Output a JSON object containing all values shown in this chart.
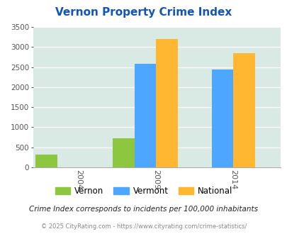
{
  "title": "Vernon Property Crime Index",
  "years": [
    2004,
    2009,
    2014
  ],
  "vernon": [
    310,
    720,
    0
  ],
  "vermont": [
    0,
    2580,
    2430
  ],
  "national": [
    0,
    3200,
    2850
  ],
  "colors": {
    "vernon": "#8dc63f",
    "vermont": "#4da6ff",
    "national": "#ffb732"
  },
  "ylim": [
    0,
    3500
  ],
  "yticks": [
    0,
    500,
    1000,
    1500,
    2000,
    2500,
    3000,
    3500
  ],
  "plot_bg": "#d9eae5",
  "title_color": "#1155bb",
  "note_text": "Crime Index corresponds to incidents per 100,000 inhabitants",
  "footer_text": "© 2025 CityRating.com - https://www.cityrating.com/crime-statistics/",
  "footer_color": "#888888",
  "note_color": "#222222",
  "bar_width": 0.28,
  "x_labels": [
    "2004",
    "2009",
    "2014"
  ],
  "x_tick_positions": [
    0,
    1,
    2
  ]
}
